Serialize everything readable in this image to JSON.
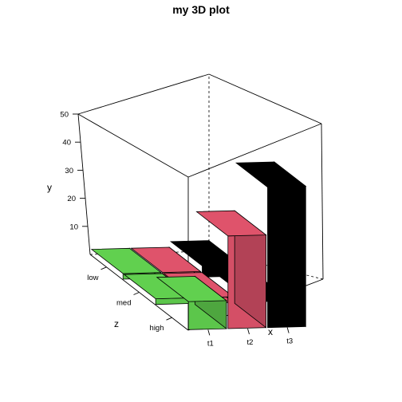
{
  "chart_data": {
    "type": "bar",
    "title": "my 3D plot",
    "xlabel": "x",
    "ylabel": "y",
    "zlabel": "z",
    "x_categories": [
      "t1",
      "t2",
      "t3"
    ],
    "z_categories": [
      "low",
      "med",
      "high"
    ],
    "ylim": [
      0,
      50
    ],
    "y_ticks": [
      10,
      20,
      30,
      40,
      50
    ],
    "series": [
      {
        "color": "#61D04F",
        "values": [
          2,
          2,
          10
        ],
        "x": "t1"
      },
      {
        "color": "#DF536B",
        "values": [
          2,
          2,
          33
        ],
        "x": "t2"
      },
      {
        "color": "#000000",
        "values": [
          4,
          5,
          50
        ],
        "x": "t3"
      }
    ],
    "colors": [
      "#61D04F",
      "#DF536B",
      "#000000"
    ]
  }
}
